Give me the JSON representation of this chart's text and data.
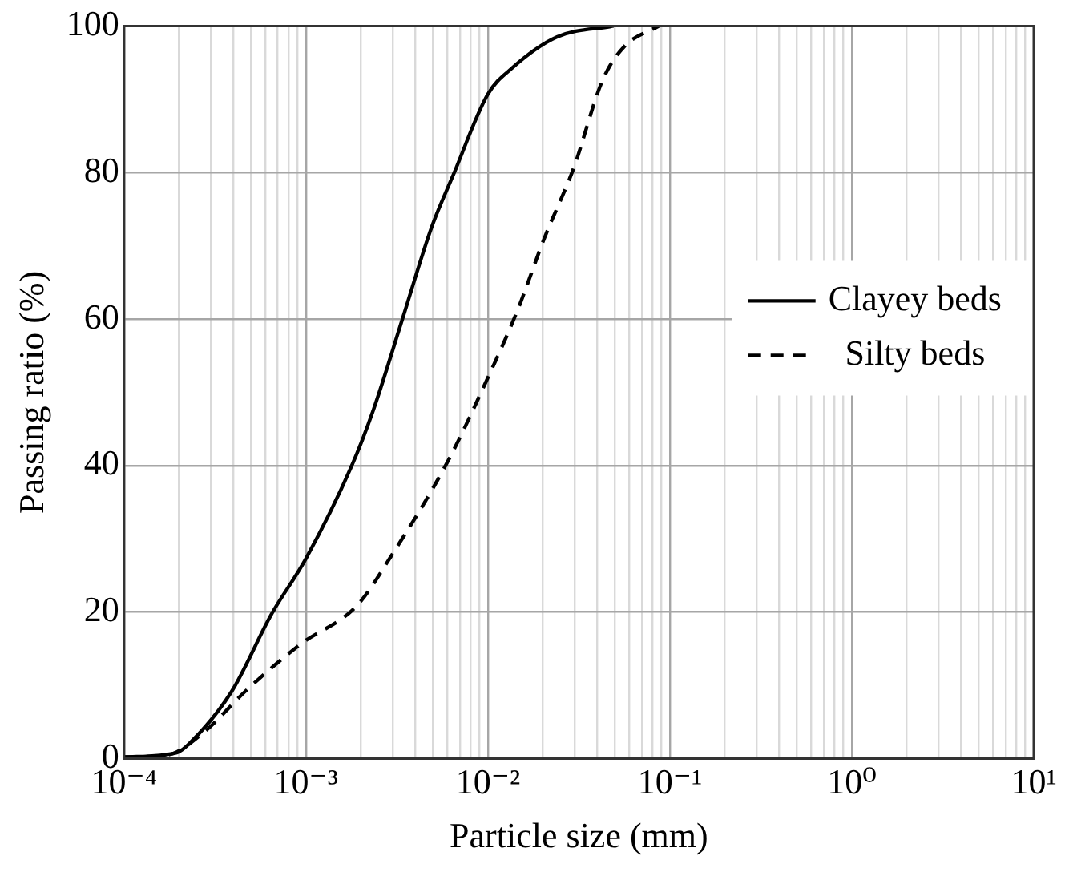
{
  "chart_data": {
    "type": "line",
    "xlabel": "Particle size (mm)",
    "ylabel": "Passing ratio (%)",
    "log": "x",
    "grid": true,
    "legend": "right",
    "marker": "none",
    "xlim": [
      0.0001,
      10
    ],
    "ylim": [
      0,
      100
    ],
    "yticks": [
      0,
      20,
      40,
      60,
      80,
      100
    ],
    "xticks": [
      {
        "value": 0.0001,
        "label": "10⁻⁴"
      },
      {
        "value": 0.0002,
        "label": null
      },
      {
        "value": 0.0003,
        "label": null
      },
      {
        "value": 0.0004,
        "label": null
      },
      {
        "value": 0.0005,
        "label": null
      },
      {
        "value": 0.0006,
        "label": null
      },
      {
        "value": 0.0007,
        "label": null
      },
      {
        "value": 0.0008,
        "label": null
      },
      {
        "value": 0.0009,
        "label": null
      },
      {
        "value": 0.001,
        "label": "10⁻³"
      },
      {
        "value": 0.002,
        "label": null
      },
      {
        "value": 0.003,
        "label": null
      },
      {
        "value": 0.004,
        "label": null
      },
      {
        "value": 0.005,
        "label": null
      },
      {
        "value": 0.006,
        "label": null
      },
      {
        "value": 0.007,
        "label": null
      },
      {
        "value": 0.008,
        "label": null
      },
      {
        "value": 0.009,
        "label": null
      },
      {
        "value": 0.01,
        "label": "10⁻²"
      },
      {
        "value": 0.02,
        "label": null
      },
      {
        "value": 0.03,
        "label": null
      },
      {
        "value": 0.04,
        "label": null
      },
      {
        "value": 0.05,
        "label": null
      },
      {
        "value": 0.06,
        "label": null
      },
      {
        "value": 0.07,
        "label": null
      },
      {
        "value": 0.08,
        "label": null
      },
      {
        "value": 0.09,
        "label": null
      },
      {
        "value": 0.1,
        "label": "10⁻¹"
      },
      {
        "value": 0.2,
        "label": null
      },
      {
        "value": 0.3,
        "label": null
      },
      {
        "value": 0.4,
        "label": null
      },
      {
        "value": 0.5,
        "label": null
      },
      {
        "value": 0.6,
        "label": null
      },
      {
        "value": 0.7,
        "label": null
      },
      {
        "value": 0.8,
        "label": null
      },
      {
        "value": 0.9,
        "label": null
      },
      {
        "value": 1,
        "label": "10⁰"
      },
      {
        "value": 2,
        "label": null
      },
      {
        "value": 3,
        "label": null
      },
      {
        "value": 4,
        "label": null
      },
      {
        "value": 5,
        "label": null
      },
      {
        "value": 6,
        "label": null
      },
      {
        "value": 7,
        "label": null
      },
      {
        "value": 8,
        "label": null
      },
      {
        "value": 9,
        "label": null
      },
      {
        "value": 10,
        "label": "10¹"
      }
    ],
    "series": [
      {
        "name": "Clayey beds",
        "color": "#000000",
        "line_style": "solid",
        "x": [
          0.0001,
          0.000195,
          0.000234,
          0.000389,
          0.000646,
          0.001,
          0.00178,
          0.00234,
          0.00339,
          0.0049,
          0.00646,
          0.01,
          0.0135,
          0.024,
          0.049
        ],
        "values": [
          0.2,
          0.8,
          2.3,
          9.1,
          19.7,
          27.3,
          39.9,
          47.5,
          60,
          72.5,
          79.7,
          90.7,
          94.2,
          98.5,
          100
        ]
      },
      {
        "name": "Silty beds",
        "color": "#000000",
        "line_style": "dashed",
        "x": [
          0.0001,
          0.000174,
          0.000269,
          0.000479,
          0.000933,
          0.00191,
          0.00295,
          0.00603,
          0.01,
          0.0145,
          0.0204,
          0.0295,
          0.0427,
          0.0562,
          0.0871
        ],
        "values": [
          0.2,
          0.5,
          3.4,
          9.5,
          15.6,
          20.9,
          27.7,
          40.6,
          52,
          61.1,
          71,
          80.5,
          92.6,
          97.2,
          100
        ]
      }
    ]
  }
}
